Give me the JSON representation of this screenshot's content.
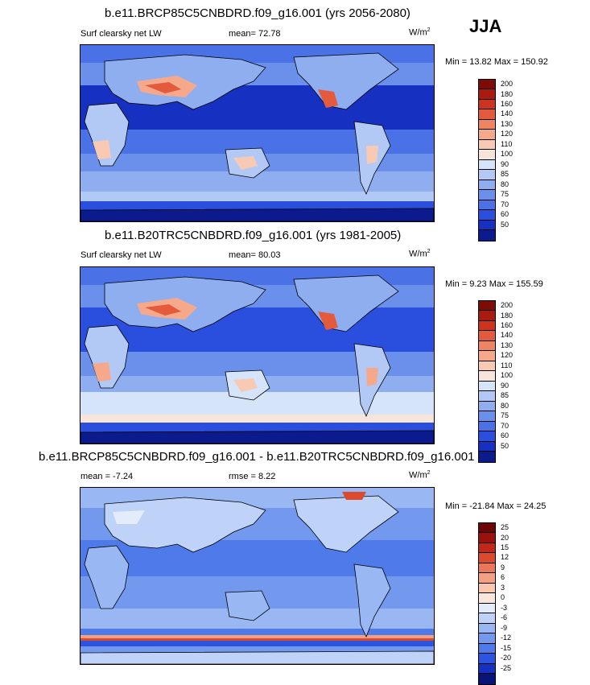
{
  "season": "JJA",
  "palette_abs": [
    "#0b1a8c",
    "#1631c2",
    "#2a4fde",
    "#4a72e6",
    "#6a90ec",
    "#8eaef0",
    "#b3c9f5",
    "#d6e4fa",
    "#f7e5dc",
    "#f8c9b3",
    "#f5a98a",
    "#ef8463",
    "#e35a3c",
    "#cc3420",
    "#a91a10",
    "#7d0b06"
  ],
  "palette_diff": [
    "#07147a",
    "#1531c0",
    "#2b55e0",
    "#4f7ae9",
    "#7399ef",
    "#98b7f3",
    "#bfd2f7",
    "#e3ecfb",
    "#fbe6dc",
    "#f9c6ae",
    "#f4a083",
    "#ec7658",
    "#dc4a2e",
    "#c2281a",
    "#9a120b",
    "#6b0604"
  ],
  "panels": [
    {
      "title": "b.e11.BRCP85C5CNBDRD.f09_g16.001 (yrs 2056-2080)",
      "left_label": "Surf clearsky net LW",
      "center_label": "mean=  72.78",
      "units": "W/m",
      "units_sup": "2",
      "minmax": "Min =  13.82 Max = 150.92",
      "colorbar_ticks": [
        "200",
        "180",
        "160",
        "140",
        "130",
        "120",
        "110",
        "100",
        "90",
        "85",
        "80",
        "75",
        "70",
        "60",
        "50"
      ]
    },
    {
      "title": "b.e11.B20TRC5CNBDRD.f09_g16.001 (yrs 1981-2005)",
      "left_label": "Surf clearsky net LW",
      "center_label": "mean=  80.03",
      "units": "W/m",
      "units_sup": "2",
      "minmax": "Min =  9.23 Max = 155.59",
      "colorbar_ticks": [
        "200",
        "180",
        "160",
        "140",
        "130",
        "120",
        "110",
        "100",
        "90",
        "85",
        "80",
        "75",
        "70",
        "60",
        "50"
      ]
    },
    {
      "title": "b.e11.BRCP85C5CNBDRD.f09_g16.001 - b.e11.B20TRC5CNBDRD.f09_g16.001",
      "left_label": "mean =  -7.24",
      "center_label": "rmse =  8.22",
      "units": "W/m",
      "units_sup": "2",
      "minmax": "Min = -21.84 Max =  24.25",
      "colorbar_ticks": [
        "25",
        "20",
        "15",
        "12",
        "9",
        "6",
        "3",
        "0",
        "-3",
        "-6",
        "-9",
        "-12",
        "-15",
        "-20",
        "-25"
      ]
    }
  ],
  "chart_data": [
    {
      "type": "heatmap",
      "title": "b.e11.BRCP85C5CNBDRD.f09_g16.001 (yrs 2056-2080)",
      "field": "Surf clearsky net LW",
      "units": "W/m2",
      "mean": 72.78,
      "min": 13.82,
      "max": 150.92,
      "contour_levels": [
        50,
        60,
        70,
        75,
        80,
        85,
        90,
        100,
        110,
        120,
        130,
        140,
        160,
        180,
        200
      ]
    },
    {
      "type": "heatmap",
      "title": "b.e11.B20TRC5CNBDRD.f09_g16.001 (yrs 1981-2005)",
      "field": "Surf clearsky net LW",
      "units": "W/m2",
      "mean": 80.03,
      "min": 9.23,
      "max": 155.59,
      "contour_levels": [
        50,
        60,
        70,
        75,
        80,
        85,
        90,
        100,
        110,
        120,
        130,
        140,
        160,
        180,
        200
      ]
    },
    {
      "type": "heatmap",
      "title": "b.e11.BRCP85C5CNBDRD.f09_g16.001 - b.e11.B20TRC5CNBDRD.f09_g16.001",
      "units": "W/m2",
      "mean": -7.24,
      "rmse": 8.22,
      "min": -21.84,
      "max": 24.25,
      "contour_levels": [
        -25,
        -20,
        -15,
        -12,
        -9,
        -6,
        -3,
        0,
        3,
        6,
        9,
        12,
        15,
        20,
        25
      ]
    }
  ]
}
